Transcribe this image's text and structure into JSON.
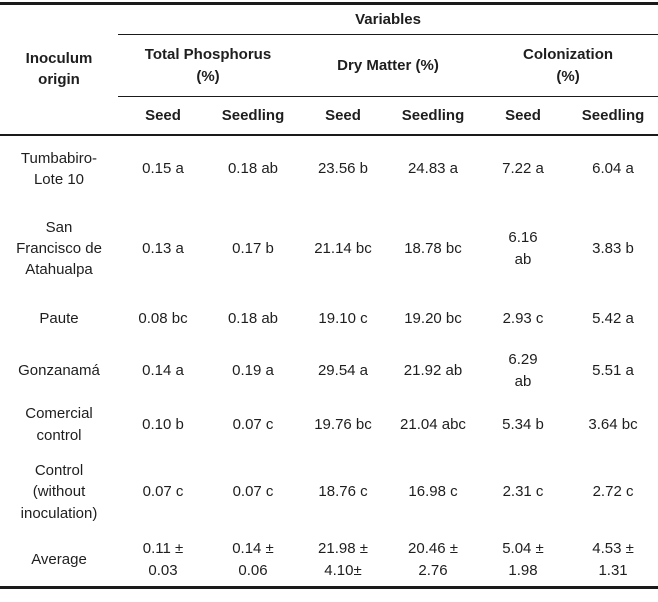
{
  "table": {
    "corner_header": "Inoculum\norigin",
    "variables_label": "Variables",
    "column_groups": [
      {
        "label": "Total Phosphorus\n(%)"
      },
      {
        "label": "Dry Matter (%)"
      },
      {
        "label": "Colonization\n(%)"
      }
    ],
    "sub_headers": [
      "Seed",
      "Seedling",
      "Seed",
      "Seedling",
      "Seed",
      "Seedling"
    ],
    "rows": [
      {
        "origin": "Tumbabiro-\nLote 10",
        "cells": [
          "0.15 a",
          "0.18 ab",
          "23.56 b",
          "24.83 a",
          "7.22 a",
          "6.04 a"
        ]
      },
      {
        "origin": "San\nFrancisco de\nAtahualpa",
        "cells": [
          "0.13 a",
          "0.17 b",
          "21.14 bc",
          "18.78 bc",
          "6.16\nab",
          "3.83 b"
        ]
      },
      {
        "origin": "Paute",
        "cells": [
          "0.08 bc",
          "0.18 ab",
          "19.10 c",
          "19.20 bc",
          "2.93 c",
          "5.42 a"
        ]
      },
      {
        "origin": "Gonzanamá",
        "cells": [
          "0.14 a",
          "0.19 a",
          "29.54 a",
          "21.92 ab",
          "6.29\nab",
          "5.51 a"
        ]
      },
      {
        "origin": "Comercial\ncontrol",
        "cells": [
          "0.10 b",
          "0.07 c",
          "19.76 bc",
          "21.04 abc",
          "5.34 b",
          "3.64 bc"
        ]
      },
      {
        "origin": "Control\n(without\ninoculation)",
        "cells": [
          "0.07 c",
          "0.07 c",
          "18.76 c",
          "16.98 c",
          "2.31 c",
          "2.72 c"
        ]
      },
      {
        "origin": "Average",
        "cells": [
          "0.11 ±\n0.03",
          "0.14 ±\n0.06",
          "21.98 ±\n4.10±",
          "20.46 ±\n2.76",
          "5.04 ±\n1.98",
          "4.53 ±\n1.31"
        ]
      }
    ],
    "colors": {
      "text": "#1e1e1e",
      "rule": "#1a1a1a",
      "background": "#ffffff"
    }
  }
}
